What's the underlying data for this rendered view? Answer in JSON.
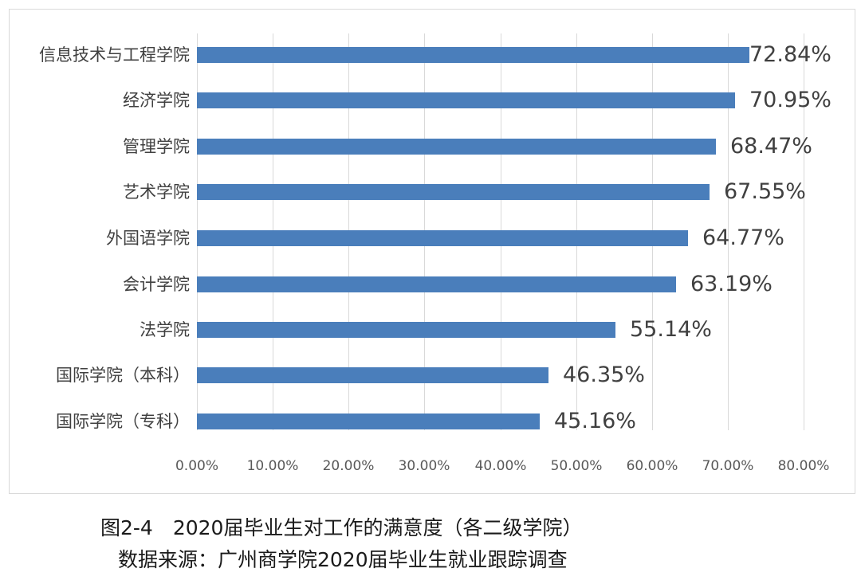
{
  "chart_data": {
    "type": "bar",
    "orientation": "horizontal",
    "title": "图2-4　2020届毕业生对工作的满意度（各二级学院）",
    "subtitle": "数据来源：广州商学院2020届毕业生就业跟踪调查",
    "xlabel": "",
    "ylabel": "",
    "xlim": [
      0,
      80
    ],
    "grid": true,
    "legend": null,
    "bar_color": "#4a7ebb",
    "categories": [
      "信息技术与工程学院",
      "经济学院",
      "管理学院",
      "艺术学院",
      "外国语学院",
      "会计学院",
      "法学院",
      "国际学院（本科）",
      "国际学院（专科）"
    ],
    "values": [
      72.84,
      70.95,
      68.47,
      67.55,
      64.77,
      63.19,
      55.14,
      46.35,
      45.16
    ],
    "value_labels": [
      "72.84%",
      "70.95%",
      "68.47%",
      "67.55%",
      "64.77%",
      "63.19%",
      "55.14%",
      "46.35%",
      "45.16%"
    ],
    "x_ticks": [
      "0.00%",
      "10.00%",
      "20.00%",
      "30.00%",
      "40.00%",
      "50.00%",
      "60.00%",
      "70.00%",
      "80.00%"
    ]
  },
  "caption": {
    "line1": "图2-4　2020届毕业生对工作的满意度（各二级学院）",
    "line2": "数据来源：广州商学院2020届毕业生就业跟踪调查"
  }
}
